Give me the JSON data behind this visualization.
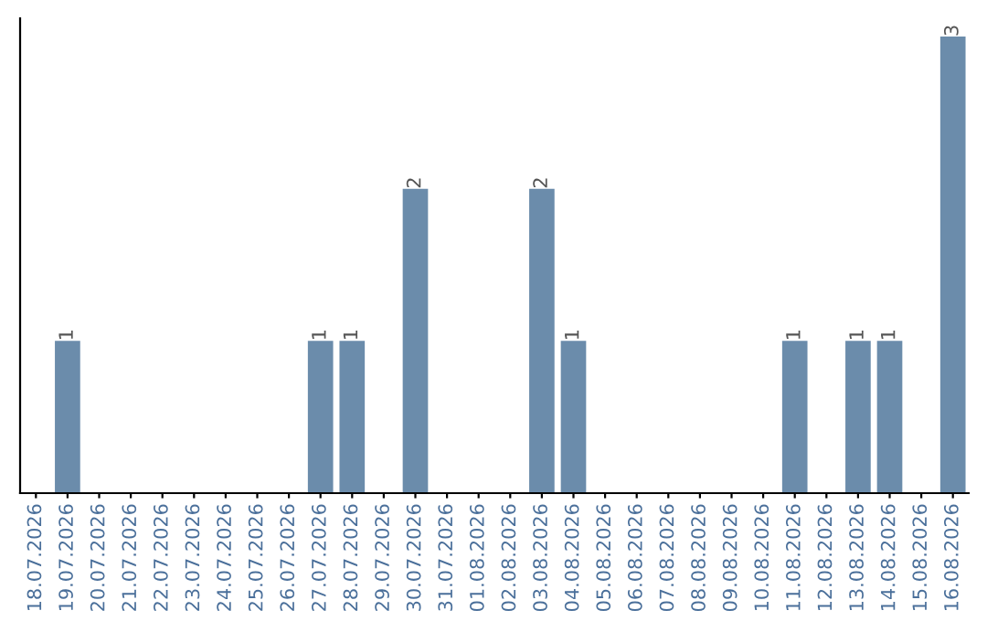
{
  "chart_data": {
    "type": "bar",
    "categories": [
      "18.07.2026",
      "19.07.2026",
      "20.07.2026",
      "21.07.2026",
      "22.07.2026",
      "23.07.2026",
      "24.07.2026",
      "25.07.2026",
      "26.07.2026",
      "27.07.2026",
      "28.07.2026",
      "29.07.2026",
      "30.07.2026",
      "31.07.2026",
      "01.08.2026",
      "02.08.2026",
      "03.08.2026",
      "04.08.2026",
      "05.08.2026",
      "06.08.2026",
      "07.08.2026",
      "08.08.2026",
      "09.08.2026",
      "10.08.2026",
      "11.08.2026",
      "12.08.2026",
      "13.08.2026",
      "14.08.2026",
      "15.08.2026",
      "16.08.2026"
    ],
    "values": [
      0,
      1,
      0,
      0,
      0,
      0,
      0,
      0,
      0,
      1,
      1,
      0,
      2,
      0,
      0,
      0,
      2,
      1,
      0,
      0,
      0,
      0,
      0,
      0,
      1,
      0,
      1,
      1,
      0,
      3
    ],
    "value_labels": [
      null,
      "1",
      null,
      null,
      null,
      null,
      null,
      null,
      null,
      "1",
      "1",
      null,
      "2",
      null,
      null,
      null,
      "2",
      "1",
      null,
      null,
      null,
      null,
      null,
      null,
      "1",
      null,
      "1",
      "1",
      null,
      "3"
    ],
    "color": "#6b8cab",
    "grid": false,
    "legend": false
  }
}
